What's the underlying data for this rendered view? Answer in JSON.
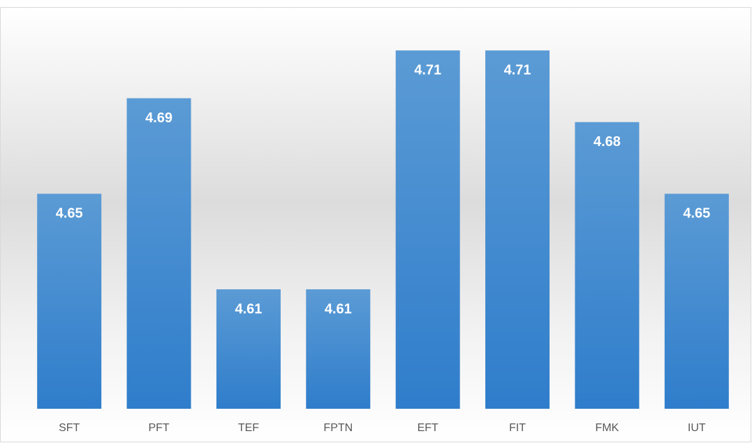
{
  "chart_data": {
    "type": "bar",
    "categories": [
      "SFT",
      "PFT",
      "TEF",
      "FPTN",
      "EFT",
      "FIT",
      "FMK",
      "IUT"
    ],
    "values": [
      4.65,
      4.69,
      4.61,
      4.61,
      4.71,
      4.71,
      4.68,
      4.65
    ],
    "color": "#4a8fd6",
    "ylim": [
      4.56,
      4.72
    ]
  }
}
